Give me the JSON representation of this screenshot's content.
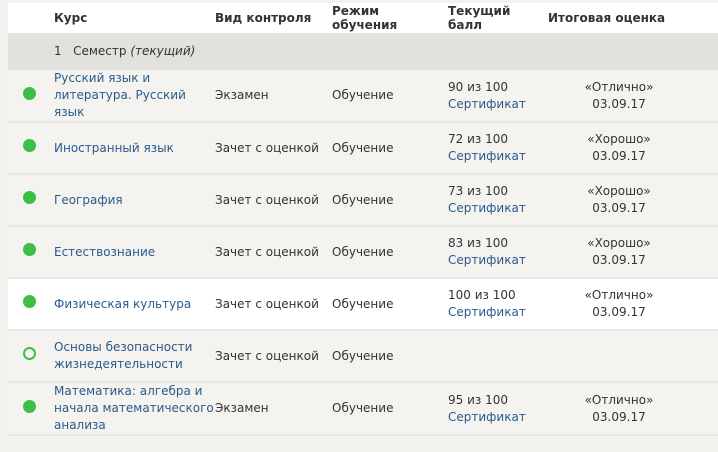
{
  "headers": {
    "course": "Курс",
    "control": "Вид контроля",
    "mode": "Режим обучения",
    "score": "Текущий балл",
    "final": "Итоговая оценка"
  },
  "semester": {
    "number": "1",
    "label": "Семестр",
    "note": "(текущий)"
  },
  "accent": "#3cbf45",
  "rows": [
    {
      "course": "Русский язык и литература. Русский язык",
      "control": "Экзамен",
      "mode": "Обучение",
      "score": "90 из 100",
      "cert": "Сертификат",
      "grade": "«Отлично»",
      "date": "03.09.17",
      "done": true
    },
    {
      "course": "Иностранный язык",
      "control": "Зачет с оценкой",
      "mode": "Обучение",
      "score": "72 из 100",
      "cert": "Сертификат",
      "grade": "«Хорошо»",
      "date": "03.09.17",
      "done": true
    },
    {
      "course": "География",
      "control": "Зачет с оценкой",
      "mode": "Обучение",
      "score": "73 из 100",
      "cert": "Сертификат",
      "grade": "«Хорошо»",
      "date": "03.09.17",
      "done": true
    },
    {
      "course": "Естествознание",
      "control": "Зачет с оценкой",
      "mode": "Обучение",
      "score": "83 из 100",
      "cert": "Сертификат",
      "grade": "«Хорошо»",
      "date": "03.09.17",
      "done": true
    },
    {
      "course": "Физическая культура",
      "control": "Зачет с оценкой",
      "mode": "Обучение",
      "score": "100 из 100",
      "cert": "Сертификат",
      "grade": "«Отлично»",
      "date": "03.09.17",
      "done": true
    },
    {
      "course": "Основы безопасности жизнедеятельности",
      "control": "Зачет с оценкой",
      "mode": "Обучение",
      "score": "",
      "cert": "",
      "grade": "",
      "date": "",
      "done": false
    },
    {
      "course": "Математика: алгебра и начала математического анализа",
      "control": "Экзамен",
      "mode": "Обучение",
      "score": "95 из 100",
      "cert": "Сертификат",
      "grade": "«Отлично»",
      "date": "03.09.17",
      "done": true
    }
  ]
}
